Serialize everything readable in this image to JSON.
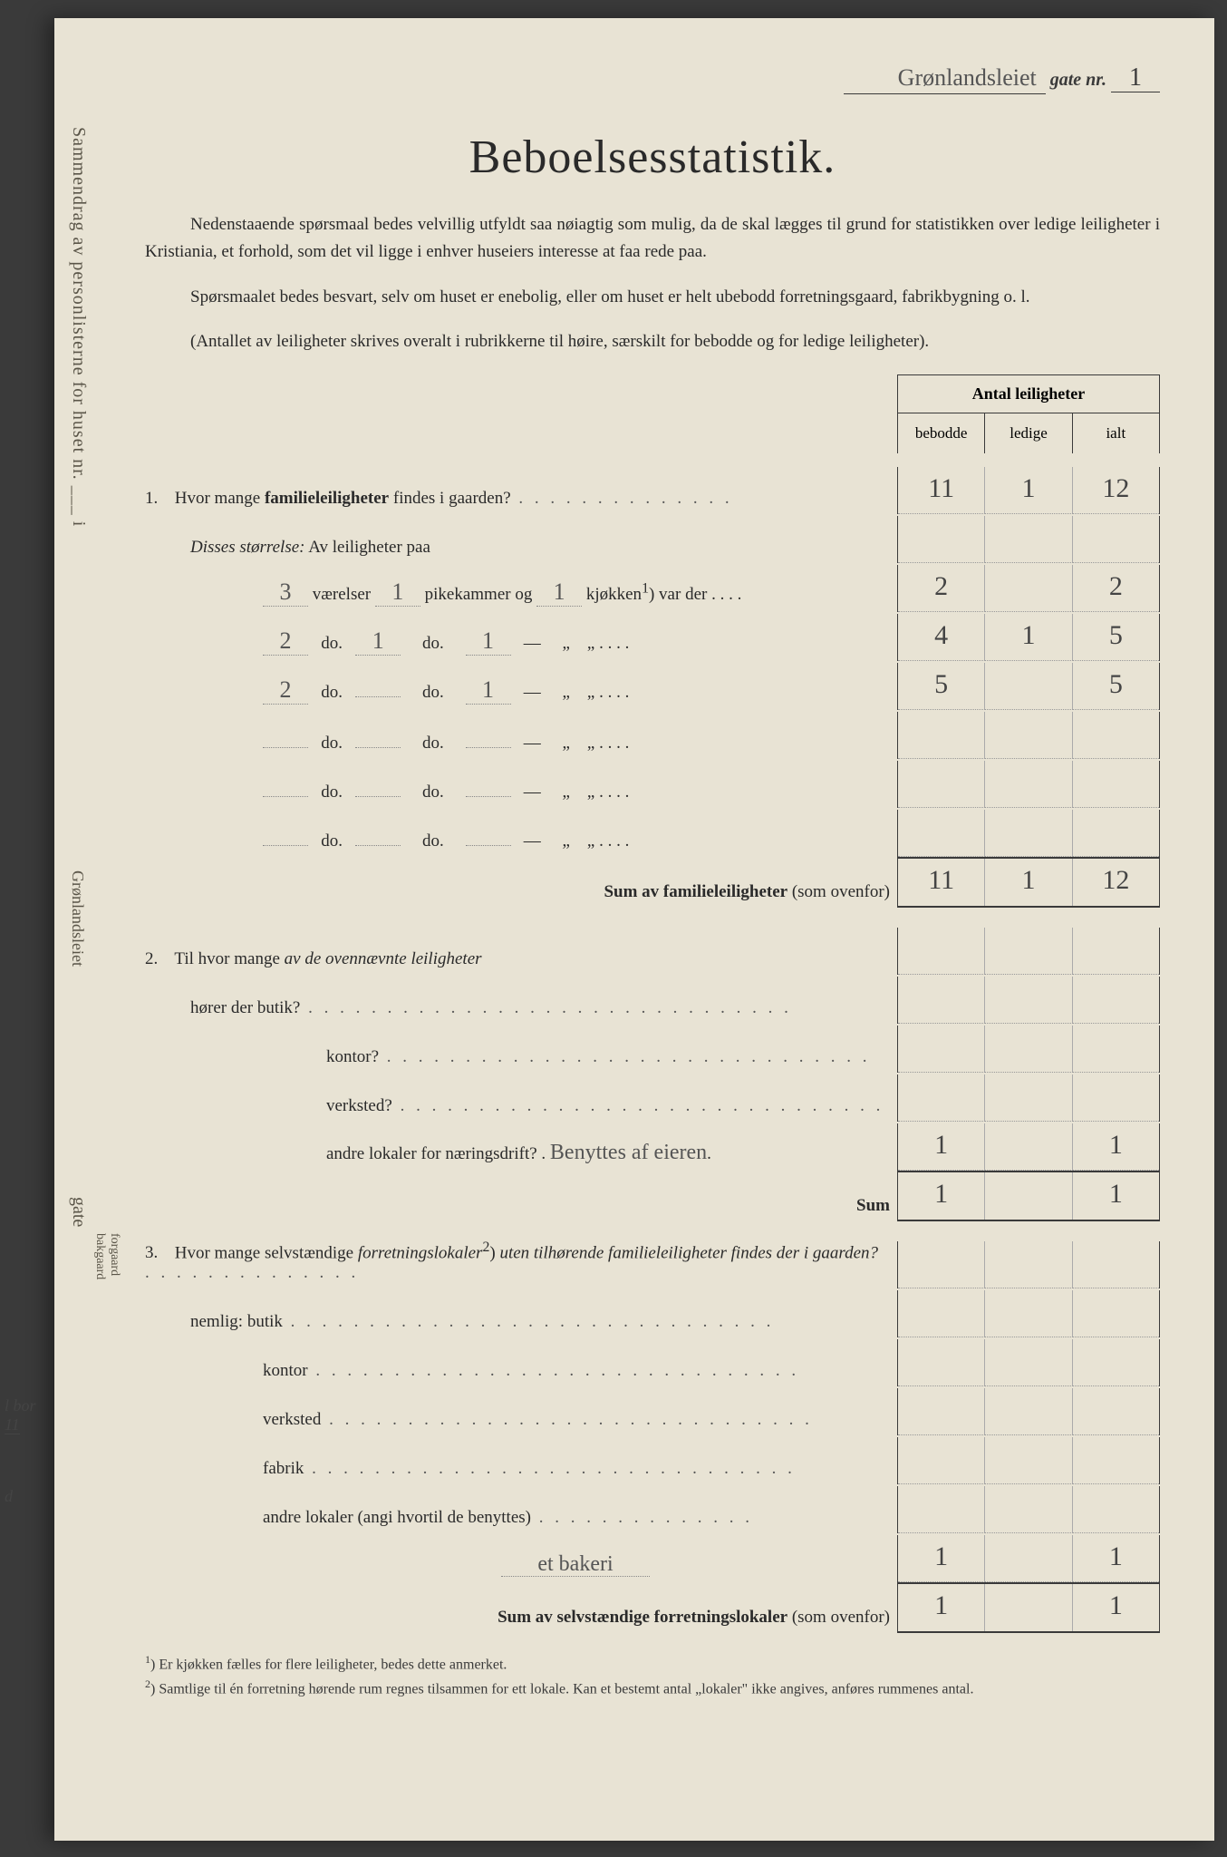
{
  "header": {
    "street_handwritten": "Grønlandsleiet",
    "gate_nr_label": "gate nr.",
    "gate_nr_value": "1"
  },
  "title": "Beboelsesstatistik.",
  "intro": {
    "p1": "Nedenstaaende spørsmaal bedes velvillig utfyldt saa nøiagtig som mulig, da de skal lægges til grund for statistikken over ledige leiligheter i Kristiania, et forhold, som det vil ligge i enhver huseiers interesse at faa rede paa.",
    "p2": "Spørsmaalet bedes besvart, selv om huset er enebolig, eller om huset er helt ubebodd forretningsgaard, fabrikbygning o. l.",
    "p3": "(Antallet av leiligheter skrives overalt i rubrikkerne til høire, særskilt for bebodde og for ledige leiligheter)."
  },
  "table_header": {
    "top": "Antal leiligheter",
    "col1": "bebodde",
    "col2": "ledige",
    "col3": "ialt"
  },
  "q1": {
    "num": "1.",
    "text": "Hvor mange ",
    "bold": "familieleiligheter",
    "text2": " findes i gaarden?",
    "cells": {
      "bebodde": "11",
      "ledige": "1",
      "ialt": "12"
    },
    "disses": "Disses størrelse:",
    "avleil": " Av leiligheter paa",
    "rows": [
      {
        "vaer": "3",
        "pike": "1",
        "kjok": "1",
        "b": "2",
        "l": "",
        "i": "2",
        "dash": false
      },
      {
        "vaer": "2",
        "pike": "1",
        "kjok": "1",
        "b": "4",
        "l": "1",
        "i": "5",
        "dash": true
      },
      {
        "vaer": "2",
        "pike": "",
        "kjok": "1",
        "b": "5",
        "l": "",
        "i": "5",
        "dash": true
      },
      {
        "vaer": "",
        "pike": "",
        "kjok": "",
        "b": "",
        "l": "",
        "i": "",
        "dash": true
      },
      {
        "vaer": "",
        "pike": "",
        "kjok": "",
        "b": "",
        "l": "",
        "i": "",
        "dash": true
      },
      {
        "vaer": "",
        "pike": "",
        "kjok": "",
        "b": "",
        "l": "",
        "i": "",
        "dash": true
      }
    ],
    "row1_labels": {
      "vaer": "værelser",
      "pike": "pikekammer og",
      "kjok": "kjøkken",
      "sup": "1",
      "vard": ") var der"
    },
    "do": "do.",
    "sum_label": "Sum av familieleiligheter",
    "sum_paren": " (som ovenfor)",
    "sum": {
      "b": "11",
      "l": "1",
      "i": "12"
    }
  },
  "q2": {
    "num": "2.",
    "text": "Til hvor mange ",
    "ital": "av de ovennævnte leiligheter",
    "line2": "hører der butik?",
    "rows": [
      {
        "label": "kontor?",
        "b": "",
        "l": "",
        "i": ""
      },
      {
        "label": "verksted?",
        "b": "",
        "l": "",
        "i": ""
      }
    ],
    "andre_label": "andre lokaler for næringsdrift?",
    "andre_hand": "Benyttes af eieren",
    "andre_cells": {
      "b": "1",
      "l": "",
      "i": "1"
    },
    "sum_label": "Sum",
    "sum": {
      "b": "1",
      "l": "",
      "i": "1"
    }
  },
  "q3": {
    "num": "3.",
    "text1": "Hvor mange selvstændige ",
    "ital": "forretningslokaler",
    "sup": "2",
    "text2": ") ",
    "ital2": "uten tilhørende familieleiligheter findes der i gaarden?",
    "nemlig": "nemlig:",
    "rows": [
      {
        "label": "butik",
        "b": "",
        "l": "",
        "i": ""
      },
      {
        "label": "kontor",
        "b": "",
        "l": "",
        "i": ""
      },
      {
        "label": "verksted",
        "b": "",
        "l": "",
        "i": ""
      },
      {
        "label": "fabrik",
        "b": "",
        "l": "",
        "i": ""
      }
    ],
    "andre_label": "andre lokaler (angi hvortil de benyttes)",
    "andre_hand": "et bakeri",
    "andre_cells": {
      "b": "1",
      "l": "",
      "i": "1"
    },
    "sum_label": "Sum av selvstændige forretningslokaler",
    "sum_paren": " (som ovenfor)",
    "sum": {
      "b": "1",
      "l": "",
      "i": "1"
    }
  },
  "footnotes": {
    "f1_mark": "1",
    "f1": "Er kjøkken fælles for flere leiligheter, bedes dette anmerket.",
    "f2_mark": "2",
    "f2": "Samtlige til én forretning hørende rum regnes tilsammen for ett lokale. Kan et bestemt antal „lokaler\" ikke angives, anføres rummenes antal."
  },
  "spine": {
    "main": "Sammendrag av personlisterne for huset nr.",
    "i": "i",
    "hand": "Grønlandsleiet",
    "gate": "gate",
    "forgaard": "forgaard",
    "bakgaard": "bakgaard"
  },
  "edge": {
    "bor": "l bor",
    "num": "11",
    "d": "d"
  },
  "colors": {
    "paper": "#e8e3d4",
    "ink": "#2a2a2a",
    "hand": "#555555",
    "border": "#3a3a3a"
  }
}
